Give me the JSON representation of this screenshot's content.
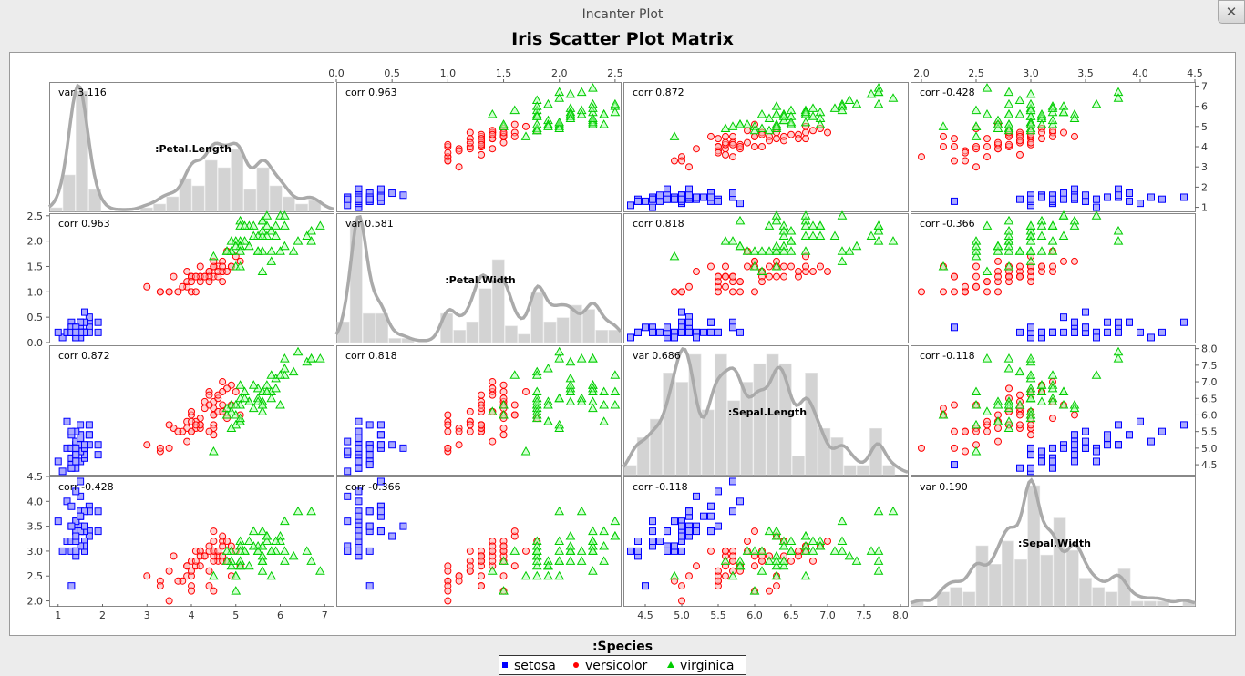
{
  "window": {
    "title": "Incanter Plot",
    "close_icon": "x-icon"
  },
  "chart_data": {
    "type": "scatter",
    "title": "Iris Scatter Plot Matrix",
    "legend": {
      "title": ":Species",
      "position": "bottom-center",
      "entries": [
        "setosa",
        "versicolor",
        "virginica"
      ]
    },
    "colors": {
      "setosa": "#0000ff",
      "versicolor": "#ff0000",
      "virginica": "#00cc00",
      "density": "#aaaaaa",
      "histogram": "#d3d3d3"
    },
    "variables": [
      {
        "name": ":Petal.Length",
        "range": [
          0.8,
          7.2
        ],
        "ticks": [
          1,
          2,
          3,
          4,
          5,
          6,
          7
        ],
        "stat": "var 3.116"
      },
      {
        "name": ":Petal.Width",
        "range": [
          0.0,
          2.55
        ],
        "ticks": [
          0.0,
          0.5,
          1.0,
          1.5,
          2.0,
          2.5
        ],
        "tick_labels": [
          "0.0",
          "0.5",
          "1.0",
          "1.5",
          "2.0",
          "2.5"
        ],
        "stat": "var 0.581"
      },
      {
        "name": ":Sepal.Length",
        "range": [
          4.2,
          8.1
        ],
        "ticks": [
          4.5,
          5.0,
          5.5,
          6.0,
          6.5,
          7.0,
          7.5,
          8.0
        ],
        "tick_labels": [
          "4.5",
          "5.0",
          "5.5",
          "6.0",
          "6.5",
          "7.0",
          "7.5",
          "8.0"
        ],
        "stat": "var 0.686"
      },
      {
        "name": ":Sepal.Width",
        "range": [
          1.9,
          4.5
        ],
        "ticks": [
          2.0,
          2.5,
          3.0,
          3.5,
          4.0,
          4.5
        ],
        "tick_labels": [
          "2.0",
          "2.5",
          "3.0",
          "3.5",
          "4.0",
          "4.5"
        ],
        "stat": "var 0.190"
      }
    ],
    "correlations": [
      [
        "",
        "corr 0.963",
        "corr 0.872",
        "corr -0.428"
      ],
      [
        "corr 0.963",
        "",
        "corr 0.818",
        "corr -0.366"
      ],
      [
        "corr 0.872",
        "corr 0.818",
        "",
        "corr -0.118"
      ],
      [
        "corr -0.428",
        "corr -0.366",
        "corr -0.118",
        ""
      ]
    ],
    "species": [
      {
        "name": "setosa",
        "petal_length": [
          1.4,
          1.4,
          1.3,
          1.5,
          1.4,
          1.7,
          1.4,
          1.5,
          1.4,
          1.5,
          1.5,
          1.6,
          1.4,
          1.1,
          1.2,
          1.5,
          1.3,
          1.4,
          1.7,
          1.5,
          1.7,
          1.5,
          1.0,
          1.7,
          1.9,
          1.6,
          1.6,
          1.5,
          1.4,
          1.6,
          1.6,
          1.5,
          1.5,
          1.4,
          1.5,
          1.2,
          1.3,
          1.4,
          1.3,
          1.5,
          1.3,
          1.3,
          1.3,
          1.6,
          1.9,
          1.4,
          1.6,
          1.4,
          1.5,
          1.4
        ],
        "petal_width": [
          0.2,
          0.2,
          0.2,
          0.2,
          0.2,
          0.4,
          0.3,
          0.2,
          0.2,
          0.1,
          0.2,
          0.2,
          0.1,
          0.1,
          0.2,
          0.4,
          0.4,
          0.3,
          0.3,
          0.3,
          0.2,
          0.4,
          0.2,
          0.5,
          0.2,
          0.2,
          0.4,
          0.2,
          0.2,
          0.2,
          0.2,
          0.4,
          0.1,
          0.2,
          0.2,
          0.2,
          0.2,
          0.1,
          0.2,
          0.2,
          0.3,
          0.3,
          0.2,
          0.6,
          0.4,
          0.3,
          0.2,
          0.2,
          0.2,
          0.2
        ],
        "sepal_length": [
          5.1,
          4.9,
          4.7,
          4.6,
          5.0,
          5.4,
          4.6,
          5.0,
          4.4,
          4.9,
          5.4,
          4.8,
          4.8,
          4.3,
          5.8,
          5.7,
          5.4,
          5.1,
          5.7,
          5.1,
          5.4,
          5.1,
          4.6,
          5.1,
          4.8,
          5.0,
          5.0,
          5.2,
          5.2,
          4.7,
          4.8,
          5.4,
          5.2,
          5.5,
          4.9,
          5.0,
          5.5,
          4.9,
          4.4,
          5.1,
          5.0,
          4.5,
          4.4,
          5.0,
          5.1,
          4.8,
          5.1,
          4.6,
          5.3,
          5.0
        ],
        "sepal_width": [
          3.5,
          3.0,
          3.2,
          3.1,
          3.6,
          3.9,
          3.4,
          3.4,
          2.9,
          3.1,
          3.7,
          3.4,
          3.0,
          3.0,
          4.0,
          4.4,
          3.9,
          3.5,
          3.8,
          3.8,
          3.4,
          3.7,
          3.6,
          3.3,
          3.4,
          3.0,
          3.4,
          3.5,
          3.4,
          3.2,
          3.1,
          3.4,
          4.1,
          4.2,
          3.1,
          3.2,
          3.5,
          3.6,
          3.0,
          3.4,
          3.5,
          2.3,
          3.2,
          3.5,
          3.8,
          3.0,
          3.8,
          3.2,
          3.7,
          3.3
        ]
      },
      {
        "name": "versicolor",
        "petal_length": [
          4.7,
          4.5,
          4.9,
          4.0,
          4.6,
          4.5,
          4.7,
          3.3,
          4.6,
          3.9,
          3.5,
          4.2,
          4.0,
          4.7,
          3.6,
          4.4,
          4.5,
          4.1,
          4.5,
          3.9,
          4.8,
          4.0,
          4.9,
          4.7,
          4.3,
          4.4,
          4.8,
          5.0,
          4.5,
          3.5,
          3.8,
          3.7,
          3.9,
          5.1,
          4.5,
          4.5,
          4.7,
          4.4,
          4.1,
          4.0,
          4.4,
          4.6,
          4.0,
          3.3,
          4.2,
          4.2,
          4.2,
          4.3,
          3.0,
          4.1
        ],
        "petal_width": [
          1.4,
          1.5,
          1.5,
          1.3,
          1.5,
          1.3,
          1.6,
          1.0,
          1.3,
          1.4,
          1.0,
          1.5,
          1.0,
          1.4,
          1.3,
          1.4,
          1.5,
          1.0,
          1.5,
          1.1,
          1.8,
          1.3,
          1.5,
          1.2,
          1.3,
          1.4,
          1.4,
          1.7,
          1.5,
          1.0,
          1.1,
          1.0,
          1.2,
          1.6,
          1.5,
          1.6,
          1.5,
          1.3,
          1.3,
          1.3,
          1.2,
          1.4,
          1.2,
          1.0,
          1.3,
          1.2,
          1.3,
          1.3,
          1.1,
          1.3
        ],
        "sepal_length": [
          7.0,
          6.4,
          6.9,
          5.5,
          6.5,
          5.7,
          6.3,
          4.9,
          6.6,
          5.2,
          5.0,
          5.9,
          6.0,
          6.1,
          5.6,
          6.7,
          5.6,
          5.8,
          6.2,
          5.6,
          5.9,
          6.1,
          6.3,
          6.1,
          6.4,
          6.6,
          6.8,
          6.7,
          6.0,
          5.7,
          5.5,
          5.5,
          5.8,
          6.0,
          5.4,
          6.0,
          6.7,
          6.3,
          5.6,
          5.5,
          5.5,
          6.1,
          5.8,
          5.0,
          5.6,
          5.7,
          5.7,
          6.2,
          5.1,
          5.7
        ],
        "sepal_width": [
          3.2,
          3.2,
          3.1,
          2.3,
          2.8,
          2.8,
          3.3,
          2.4,
          2.9,
          2.7,
          2.0,
          3.0,
          2.2,
          2.9,
          2.9,
          3.1,
          3.0,
          2.7,
          2.2,
          2.5,
          3.2,
          2.8,
          2.5,
          2.8,
          2.9,
          3.0,
          2.8,
          3.0,
          2.9,
          2.6,
          2.4,
          2.4,
          2.7,
          2.7,
          3.0,
          3.4,
          3.1,
          2.3,
          3.0,
          2.5,
          2.6,
          3.0,
          2.6,
          2.3,
          2.7,
          3.0,
          2.9,
          2.9,
          2.5,
          2.8
        ]
      },
      {
        "name": "virginica",
        "petal_length": [
          6.0,
          5.1,
          5.9,
          5.6,
          5.8,
          6.6,
          4.5,
          6.3,
          5.8,
          6.1,
          5.1,
          5.3,
          5.5,
          5.0,
          5.1,
          5.3,
          5.5,
          6.7,
          6.9,
          5.0,
          5.7,
          4.9,
          6.7,
          4.9,
          5.7,
          6.0,
          4.8,
          4.9,
          5.6,
          5.8,
          6.1,
          6.4,
          5.6,
          5.1,
          5.6,
          6.1,
          5.6,
          5.5,
          4.8,
          5.4,
          5.6,
          5.1,
          5.1,
          5.9,
          5.7,
          5.2,
          5.0,
          5.2,
          5.4,
          5.1
        ],
        "petal_width": [
          2.5,
          1.9,
          2.1,
          1.8,
          2.2,
          2.1,
          1.7,
          1.8,
          1.8,
          2.5,
          2.0,
          1.9,
          2.1,
          2.0,
          2.4,
          2.3,
          1.8,
          2.2,
          2.3,
          1.5,
          2.3,
          2.0,
          2.0,
          1.8,
          2.1,
          1.8,
          1.8,
          1.8,
          2.1,
          1.6,
          1.9,
          2.0,
          2.2,
          1.5,
          1.4,
          2.3,
          2.4,
          1.8,
          1.8,
          2.1,
          2.4,
          2.3,
          1.9,
          2.3,
          2.5,
          2.3,
          1.9,
          2.0,
          2.3,
          1.8
        ],
        "sepal_length": [
          6.3,
          5.8,
          7.1,
          6.3,
          6.5,
          7.6,
          4.9,
          7.3,
          6.7,
          7.2,
          6.5,
          6.4,
          6.8,
          5.7,
          5.8,
          6.4,
          6.5,
          7.7,
          7.7,
          6.0,
          6.9,
          5.6,
          7.7,
          6.3,
          6.7,
          7.2,
          6.2,
          6.1,
          6.4,
          7.2,
          7.4,
          7.9,
          6.4,
          6.3,
          6.1,
          7.7,
          6.3,
          6.4,
          6.0,
          6.9,
          6.7,
          6.9,
          5.8,
          6.8,
          6.7,
          6.7,
          6.3,
          6.5,
          6.2,
          5.9
        ],
        "sepal_width": [
          3.3,
          2.7,
          3.0,
          2.9,
          3.0,
          3.0,
          2.5,
          2.9,
          2.5,
          3.6,
          3.2,
          2.7,
          3.0,
          2.5,
          2.8,
          3.2,
          3.0,
          3.8,
          2.6,
          2.2,
          3.2,
          2.8,
          2.8,
          2.7,
          3.3,
          3.2,
          2.8,
          3.0,
          2.8,
          3.0,
          2.8,
          3.8,
          2.8,
          2.8,
          2.6,
          3.0,
          3.4,
          3.1,
          3.0,
          3.1,
          3.1,
          3.1,
          2.7,
          3.2,
          3.3,
          3.0,
          2.5,
          3.0,
          3.4,
          3.0
        ]
      }
    ]
  }
}
